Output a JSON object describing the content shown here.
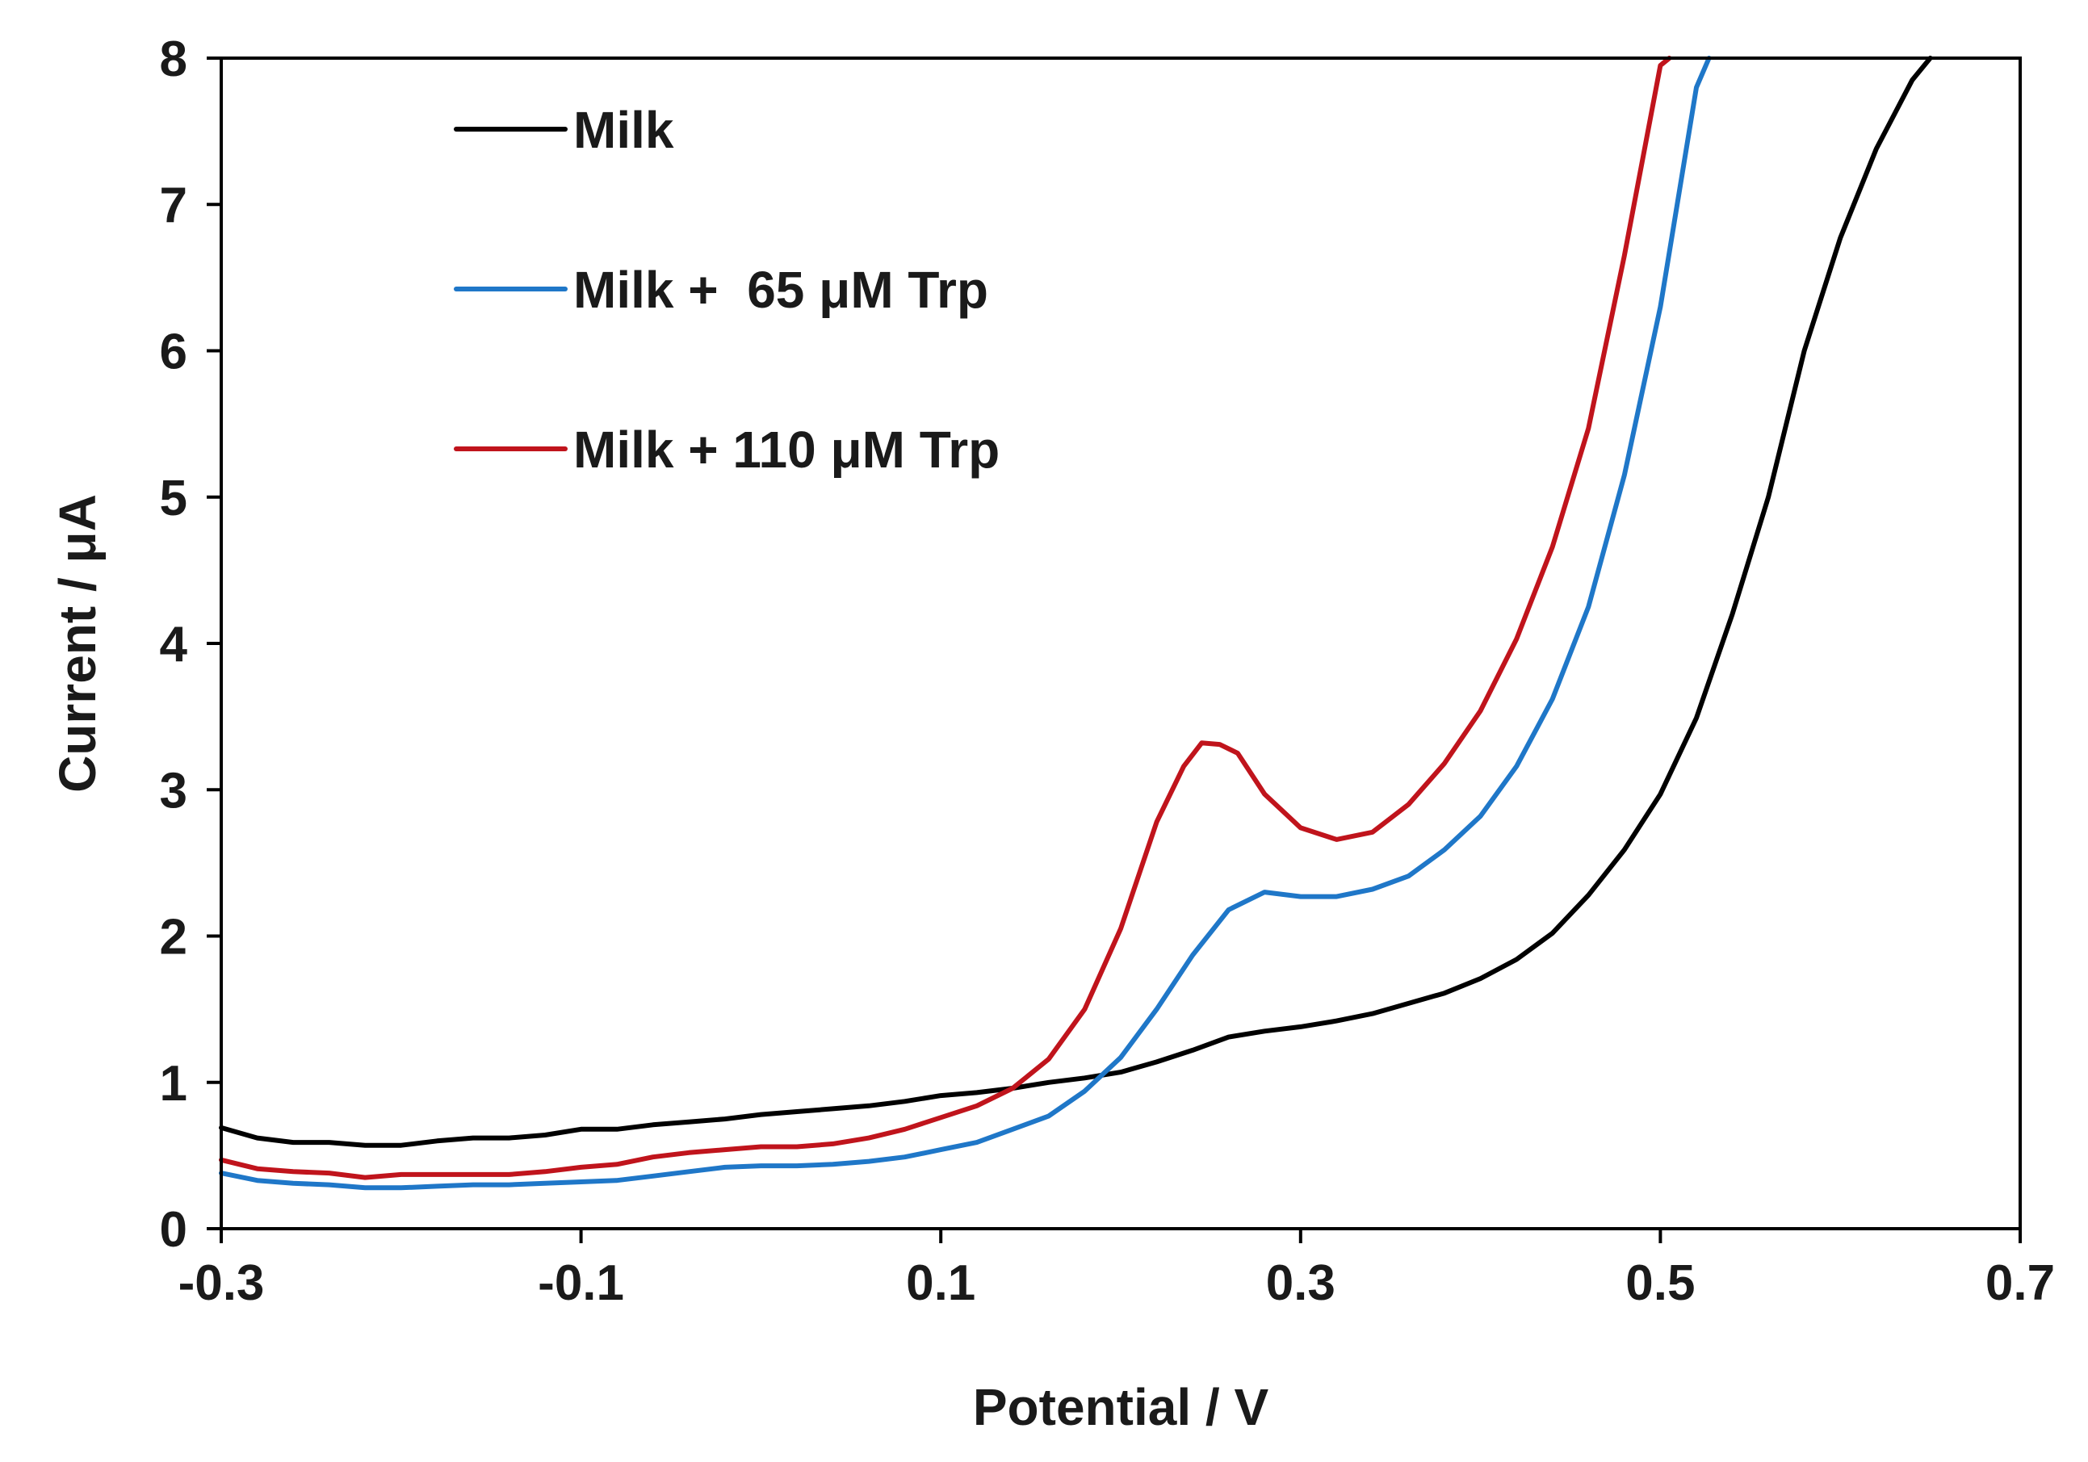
{
  "chart_data": {
    "type": "line",
    "title": "",
    "xlabel": "Potential / V",
    "ylabel": "Current / μA",
    "xlim": [
      -0.3,
      0.7
    ],
    "ylim": [
      0,
      8
    ],
    "x_ticks": [
      -0.3,
      -0.1,
      0.1,
      0.3,
      0.5,
      0.7
    ],
    "x_tick_labels": [
      "-0.3",
      "-0.1",
      "0.1",
      "0.3",
      "0.5",
      "0.7"
    ],
    "y_ticks": [
      0,
      1,
      2,
      3,
      4,
      5,
      6,
      7,
      8
    ],
    "y_tick_labels": [
      "0",
      "1",
      "2",
      "3",
      "4",
      "5",
      "6",
      "7",
      "8"
    ],
    "grid": false,
    "legend_position": "top-left",
    "series": [
      {
        "name": "Milk",
        "color": "#000000",
        "x": [
          -0.3,
          -0.28,
          -0.26,
          -0.24,
          -0.22,
          -0.2,
          -0.18,
          -0.16,
          -0.14,
          -0.12,
          -0.1,
          -0.08,
          -0.06,
          -0.04,
          -0.02,
          0.0,
          0.02,
          0.04,
          0.06,
          0.08,
          0.1,
          0.12,
          0.14,
          0.16,
          0.18,
          0.2,
          0.22,
          0.24,
          0.26,
          0.28,
          0.3,
          0.32,
          0.34,
          0.36,
          0.38,
          0.4,
          0.42,
          0.44,
          0.46,
          0.48,
          0.5,
          0.52,
          0.54,
          0.56,
          0.58,
          0.6,
          0.62,
          0.64,
          0.65
        ],
        "y": [
          0.69,
          0.62,
          0.59,
          0.59,
          0.57,
          0.57,
          0.6,
          0.62,
          0.62,
          0.64,
          0.68,
          0.68,
          0.71,
          0.73,
          0.75,
          0.78,
          0.8,
          0.82,
          0.84,
          0.87,
          0.91,
          0.93,
          0.96,
          1.0,
          1.03,
          1.07,
          1.14,
          1.22,
          1.31,
          1.35,
          1.38,
          1.42,
          1.47,
          1.54,
          1.61,
          1.71,
          1.84,
          2.02,
          2.28,
          2.59,
          2.97,
          3.49,
          4.2,
          5.0,
          6.0,
          6.77,
          7.38,
          7.85,
          8.0
        ]
      },
      {
        "name": "Milk +  65 μM Trp",
        "color": "#1f77c8",
        "x": [
          -0.3,
          -0.28,
          -0.26,
          -0.24,
          -0.22,
          -0.2,
          -0.18,
          -0.16,
          -0.14,
          -0.12,
          -0.1,
          -0.08,
          -0.06,
          -0.04,
          -0.02,
          0.0,
          0.02,
          0.04,
          0.06,
          0.08,
          0.1,
          0.12,
          0.14,
          0.16,
          0.18,
          0.2,
          0.22,
          0.24,
          0.26,
          0.28,
          0.3,
          0.32,
          0.34,
          0.36,
          0.38,
          0.4,
          0.42,
          0.44,
          0.46,
          0.48,
          0.5,
          0.52,
          0.527
        ],
        "y": [
          0.38,
          0.33,
          0.31,
          0.3,
          0.28,
          0.28,
          0.29,
          0.3,
          0.3,
          0.31,
          0.32,
          0.33,
          0.36,
          0.39,
          0.42,
          0.43,
          0.43,
          0.44,
          0.46,
          0.49,
          0.54,
          0.59,
          0.68,
          0.77,
          0.94,
          1.17,
          1.5,
          1.87,
          2.18,
          2.3,
          2.27,
          2.27,
          2.32,
          2.41,
          2.59,
          2.82,
          3.16,
          3.62,
          4.25,
          5.15,
          6.3,
          7.8,
          8.0
        ]
      },
      {
        "name": "Milk + 110 μM Trp",
        "color": "#c0141c",
        "x": [
          -0.3,
          -0.28,
          -0.26,
          -0.24,
          -0.22,
          -0.2,
          -0.18,
          -0.16,
          -0.14,
          -0.12,
          -0.1,
          -0.08,
          -0.06,
          -0.04,
          -0.02,
          0.0,
          0.02,
          0.04,
          0.06,
          0.08,
          0.1,
          0.12,
          0.14,
          0.16,
          0.18,
          0.2,
          0.22,
          0.235,
          0.245,
          0.255,
          0.265,
          0.28,
          0.3,
          0.32,
          0.34,
          0.36,
          0.38,
          0.4,
          0.42,
          0.44,
          0.46,
          0.48,
          0.5,
          0.505
        ],
        "y": [
          0.47,
          0.41,
          0.39,
          0.38,
          0.35,
          0.37,
          0.37,
          0.37,
          0.37,
          0.39,
          0.42,
          0.44,
          0.49,
          0.52,
          0.54,
          0.56,
          0.56,
          0.58,
          0.62,
          0.68,
          0.76,
          0.84,
          0.96,
          1.16,
          1.5,
          2.05,
          2.78,
          3.16,
          3.32,
          3.31,
          3.25,
          2.97,
          2.74,
          2.66,
          2.71,
          2.9,
          3.18,
          3.54,
          4.03,
          4.66,
          5.47,
          6.65,
          7.95,
          8.0
        ]
      }
    ]
  }
}
